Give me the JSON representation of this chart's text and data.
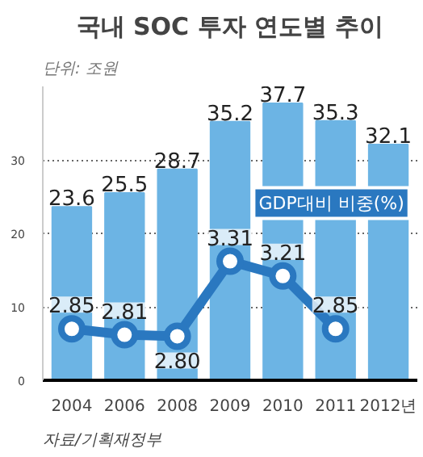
{
  "chart_data": {
    "type": "bar",
    "title": "국내 SOC 투자 연도별 추이",
    "categories": [
      "2004",
      "2006",
      "2008",
      "2009",
      "2010",
      "2011",
      "2012년"
    ],
    "series": [
      {
        "color": "#6cb4e4",
        "values": [
          23.6,
          25.5,
          28.7,
          35.2,
          37.7,
          35.3,
          32.1
        ]
      },
      {
        "type": "line",
        "name": "GDP대비 비중(%)",
        "axis": "y2",
        "color": "#2a78c0",
        "marker": "circle",
        "values": [
          2.85,
          2.81,
          2.8,
          3.31,
          3.21,
          2.85,
          null
        ],
        "value_labels": [
          "2.85",
          "2.81",
          "2.80",
          "3.31",
          "3.21",
          "2.85",
          null
        ]
      }
    ],
    "ylim": [
      0,
      40
    ],
    "yticks": [
      0,
      10,
      20,
      30
    ],
    "y2lim": [
      2.5,
      4.5
    ],
    "tick_labels": "xy",
    "grid": "y",
    "data_labels": true,
    "legend": false,
    "annotations": [
      "단위: 조원",
      "자료/기획재정부"
    ]
  }
}
